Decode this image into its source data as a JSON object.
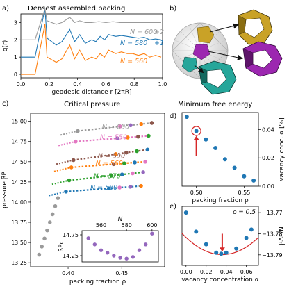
{
  "panels": {
    "a": {
      "letter": "a)",
      "title": "Densest assembled packing"
    },
    "b": {
      "letter": "b)"
    },
    "c": {
      "letter": "c)",
      "title": "Critical pressure"
    },
    "d": {
      "letter": "d)",
      "title": "Minimum free energy"
    },
    "e": {
      "letter": "e)"
    }
  },
  "chart_data": [
    {
      "id": "a",
      "type": "line",
      "title": "Densest assembled packing",
      "xlabel": "geodesic distance r [2πR]",
      "ylabel": "g(r)",
      "xlim": [
        0,
        1.0
      ],
      "ylim": [
        -0.2,
        3.5
      ],
      "xticks": [
        "0.0",
        "0.2",
        "0.4",
        "0.6",
        "0.8",
        "1.0"
      ],
      "yticks": [
        "0",
        "1",
        "2",
        "3"
      ],
      "series": [
        {
          "name": "N = 560",
          "offset": 0,
          "color": "#ff7f0e",
          "x": [
            0.1,
            0.17,
            0.185,
            0.25,
            0.29,
            0.345,
            0.38,
            0.415,
            0.455,
            0.5,
            0.53,
            0.56,
            0.59,
            0.62,
            0.67,
            0.71,
            0.75,
            0.79,
            0.83,
            0.87,
            0.91,
            0.95,
            0.99
          ],
          "y": [
            0,
            2.9,
            1.0,
            0.7,
            0.9,
            1.7,
            0.9,
            1.4,
            0.8,
            1.0,
            0.9,
            1.2,
            1.0,
            1.4,
            1.2,
            1.3,
            1.2,
            1.2,
            1.1,
            1.2,
            1.0,
            1.1,
            1.0
          ]
        },
        {
          "name": "N = 580",
          "offset": 1,
          "color": "#1f77b4",
          "x": [
            0.1,
            0.17,
            0.185,
            0.25,
            0.29,
            0.345,
            0.38,
            0.415,
            0.455,
            0.5,
            0.53,
            0.56,
            0.59,
            0.62,
            0.67,
            0.71,
            0.75,
            0.79,
            0.83,
            0.87,
            0.91,
            0.95,
            0.99
          ],
          "y": [
            0,
            2.8,
            1.1,
            0.7,
            0.9,
            1.6,
            0.9,
            1.3,
            0.8,
            1.0,
            0.9,
            1.2,
            1.0,
            1.3,
            1.2,
            1.25,
            1.2,
            1.15,
            1.1,
            1.15,
            1.0,
            1.05,
            1.0
          ]
        },
        {
          "name": "N = 600",
          "offset": 2,
          "color": "#999999",
          "x": [
            0.1,
            0.17,
            0.185,
            0.25,
            0.29,
            0.345,
            0.38,
            0.415,
            0.455,
            0.5,
            0.55,
            0.6,
            0.65,
            0.7,
            0.75,
            0.8,
            0.85,
            0.9,
            0.95,
            0.99
          ],
          "y": [
            0,
            1.8,
            1.1,
            0.9,
            1.0,
            1.3,
            1.0,
            1.1,
            1.0,
            1.0,
            1.05,
            1.0,
            1.05,
            1.0,
            1.0,
            1.0,
            1.0,
            1.0,
            1.0,
            1.0
          ]
        }
      ],
      "annotations": [
        "N = 600",
        "+2",
        "N = 580",
        "+1",
        "N = 560"
      ]
    },
    {
      "id": "c",
      "type": "scatter",
      "title": "Critical pressure",
      "xlabel": "packing fraction ρ",
      "ylabel": "pressure βP",
      "xlim": [
        0.365,
        0.49
      ],
      "ylim": [
        13.2,
        15.1
      ],
      "xticks": [
        "0.40",
        "0.45"
      ],
      "yticks": [
        "13.25",
        "13.50",
        "13.75",
        "14.00",
        "14.25",
        "14.50",
        "14.75",
        "15.00"
      ],
      "series": [
        {
          "name": "N = 600",
          "color": "#999999",
          "x": [
            0.409,
            0.478
          ],
          "y": [
            14.88,
            14.98
          ]
        },
        {
          "name": "N = 550",
          "color": "#e377c2",
          "x": [
            0.407,
            0.475
          ],
          "y": [
            14.75,
            14.82
          ]
        },
        {
          "name": "N = 590",
          "color": "#8c564b",
          "x": [
            0.405,
            0.474
          ],
          "y": [
            14.52,
            14.65
          ]
        },
        {
          "name": "N = 560",
          "color": "#ff7f0e",
          "x": [
            0.403,
            0.472
          ],
          "y": [
            14.43,
            14.5
          ]
        },
        {
          "name": "N = 570",
          "color": "#2ca02c",
          "x": [
            0.401,
            0.47
          ],
          "y": [
            14.27,
            14.37
          ]
        },
        {
          "name": "N = 580",
          "color": "#1f77b4",
          "x": [
            0.398,
            0.468
          ],
          "y": [
            14.13,
            14.2
          ]
        }
      ],
      "inset": {
        "type": "scatter",
        "xlabel": "N",
        "ylabel": "βPc",
        "xlim": [
          545,
          605
        ],
        "ylim": [
          14.1,
          14.85
        ],
        "xticks": [
          "560",
          "580",
          "600"
        ],
        "yticks": [
          "14.25",
          "14.75"
        ],
        "x": [
          550,
          555,
          560,
          565,
          570,
          575,
          580,
          585,
          590,
          595,
          600
        ],
        "y": [
          14.67,
          14.52,
          14.38,
          14.32,
          14.25,
          14.2,
          14.18,
          14.22,
          14.38,
          14.52,
          14.78
        ]
      }
    },
    {
      "id": "d",
      "type": "scatter",
      "title": "Minimum free energy",
      "xlabel": "packing fraction ρ",
      "ylabel": "vacancy conc. α [%]",
      "xlim": [
        0.485,
        0.565
      ],
      "ylim": [
        0.0,
        0.052
      ],
      "xticks": [
        "0.50",
        "0.55"
      ],
      "yticks": [
        "0.00",
        "0.02",
        "0.04"
      ],
      "x": [
        0.49,
        0.5,
        0.51,
        0.52,
        0.53,
        0.54,
        0.55,
        0.56
      ],
      "y": [
        0.049,
        0.039,
        0.033,
        0.027,
        0.019,
        0.013,
        0.007,
        0.004
      ],
      "highlight_x": 0.5
    },
    {
      "id": "e",
      "type": "scatter",
      "xlabel": "vacancy concentration α",
      "ylabel": "βΔF/N",
      "annotation": "ρ = 0.5",
      "xlim": [
        -0.004,
        0.072
      ],
      "ylim": [
        -13.795,
        -13.767
      ],
      "xticks": [
        "0.00",
        "0.02",
        "0.04",
        "0.06"
      ],
      "yticks": [
        "−13.77",
        "−13.78",
        "−13.79"
      ],
      "x": [
        0.0,
        0.01,
        0.02,
        0.03,
        0.035,
        0.04,
        0.05,
        0.06,
        0.065
      ],
      "y": [
        -13.77,
        -13.779,
        -13.785,
        -13.789,
        -13.7895,
        -13.789,
        -13.787,
        -13.782,
        -13.778
      ],
      "fit": {
        "a": 6.3,
        "x0": 0.036,
        "c": -13.7899
      },
      "arrow_x": 0.036
    }
  ]
}
